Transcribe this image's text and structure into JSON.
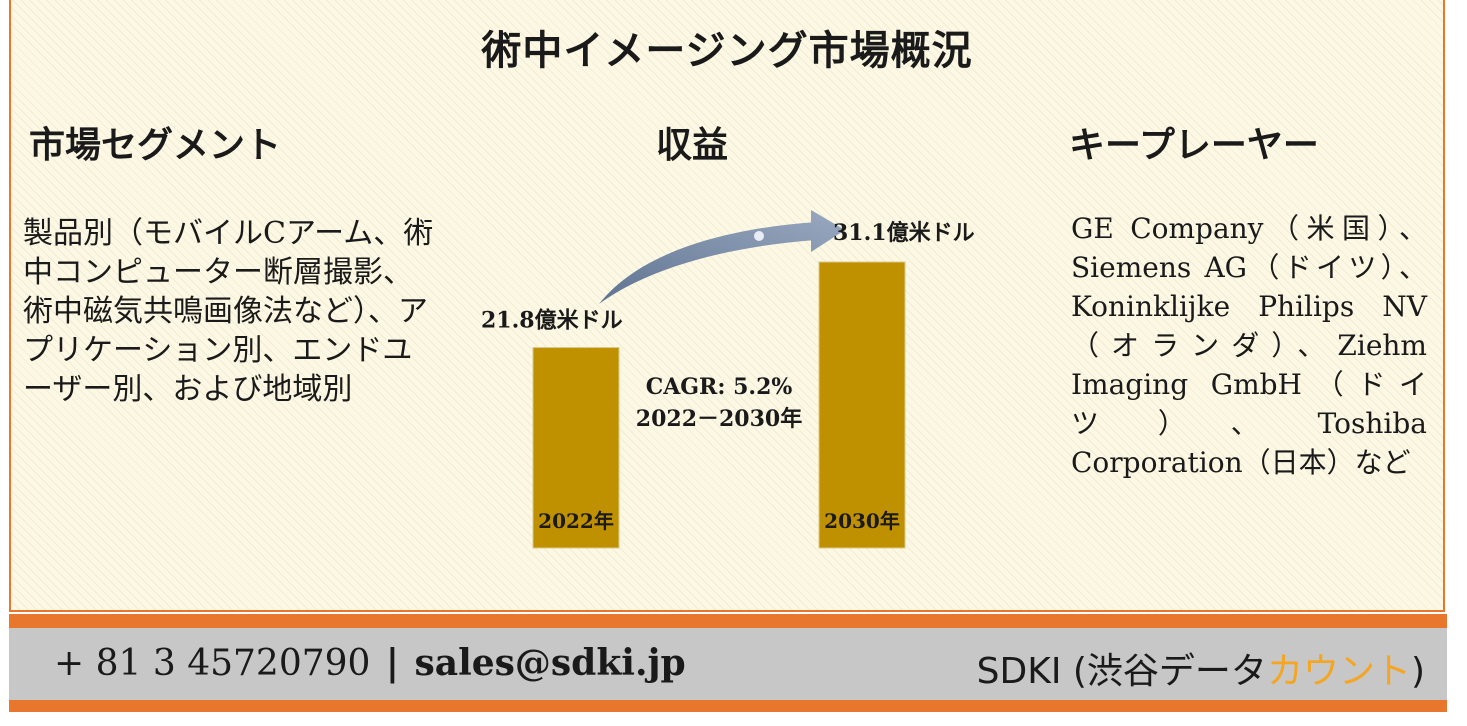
{
  "title": "術中イメージング市場概況",
  "segments": {
    "heading": "市場セグメント",
    "text": "製品別（モバイルCアーム、術中コンピューター断層撮影、術中磁気共鳴画像法など）、アプリケーション別、エンドユーザー別、および地域別"
  },
  "revenue": {
    "heading": "収益",
    "cagr": "CAGR: 5.2%",
    "period": "2022－2030年"
  },
  "key_players": {
    "heading": "キープレーヤー",
    "text": "GE Company（米国）、Siemens AG（ドイツ）、Koninklijke Philips NV（オランダ）、Ziehm Imaging GmbH（ドイツ）、Toshiba Corporation（日本）など"
  },
  "chart_data": {
    "type": "bar",
    "categories": [
      "2022年",
      "2030年"
    ],
    "values": [
      21.8,
      31.1
    ],
    "value_labels": [
      "21.8億米ドル",
      "31.1億米ドル"
    ],
    "unit": "億米ドル",
    "bar_color": "#bf9000",
    "arrow_color": "#8496b0"
  },
  "footer": {
    "phone": "+ 81 3 45720790",
    "separator": "|",
    "email": "sales@sdki.jp",
    "brand_prefix": "SDKI (渋谷データ",
    "brand_accent": "カウント",
    "brand_suffix": ")",
    "bar_color": "#e8762c",
    "accent_color": "#f4a623"
  }
}
